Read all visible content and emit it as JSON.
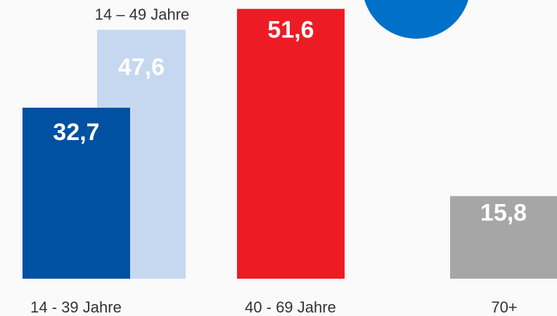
{
  "chart_data": {
    "type": "bar",
    "categories": [
      "14 - 39 Jahre",
      "14 – 49 Jahre",
      "40 - 69 Jahre",
      "70+"
    ],
    "values": [
      32.7,
      47.6,
      51.6,
      15.8
    ],
    "value_labels": [
      "32,7",
      "47,6",
      "51,6",
      "15,8"
    ],
    "colors": [
      "#0051a2",
      "#c6d8f0",
      "#ed1c24",
      "#a6a6a6"
    ]
  }
}
